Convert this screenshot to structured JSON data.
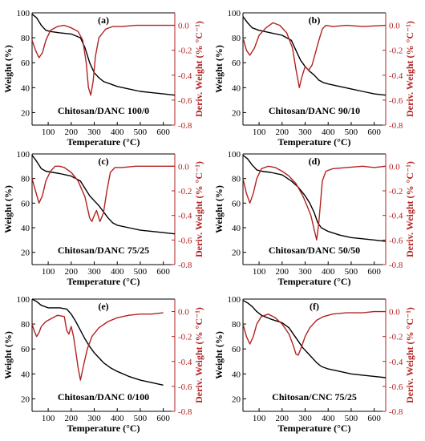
{
  "colors": {
    "weight": "#000000",
    "deriv": "#b22222",
    "frame": "#000000"
  },
  "chart_data": [
    {
      "type": "line",
      "letter": "(a)",
      "title": "Chitosan/DANC 100/0",
      "xlabel": "Temperature (°C)",
      "ylabel_left": "Weight (%)",
      "ylabel_right": "Deriv. Weight (% °C⁻¹)",
      "xlim": [
        30,
        650
      ],
      "ylim_left": [
        10,
        100
      ],
      "ylim_right": [
        -0.8,
        0.1
      ],
      "xticks": [
        "100",
        "200",
        "300",
        "400",
        "500",
        "600"
      ],
      "yticks_left": [
        "20",
        "40",
        "60",
        "80",
        "100"
      ],
      "yticks_right": [
        "0.0",
        "-0.2",
        "-0.4",
        "-0.6",
        "-0.8"
      ],
      "series": [
        {
          "axis": "left",
          "color": "#000000",
          "x": [
            30,
            50,
            70,
            90,
            110,
            150,
            200,
            240,
            260,
            280,
            300,
            320,
            340,
            370,
            400,
            450,
            500,
            550,
            600,
            650
          ],
          "y": [
            99,
            96,
            90,
            86,
            85,
            84,
            83,
            80,
            72,
            60,
            52,
            48,
            45,
            43,
            41,
            39,
            37,
            36,
            35,
            34
          ]
        },
        {
          "axis": "right",
          "color": "#b22222",
          "x": [
            30,
            45,
            60,
            75,
            90,
            110,
            140,
            170,
            200,
            230,
            250,
            265,
            275,
            285,
            295,
            305,
            320,
            350,
            380,
            420,
            480,
            550,
            600,
            650
          ],
          "y": [
            -0.12,
            -0.2,
            -0.26,
            -0.22,
            -0.12,
            -0.04,
            -0.01,
            0.0,
            -0.02,
            -0.05,
            -0.12,
            -0.3,
            -0.5,
            -0.56,
            -0.45,
            -0.25,
            -0.1,
            -0.03,
            -0.01,
            -0.01,
            0.0,
            0.0,
            0.0,
            0.0
          ]
        }
      ]
    },
    {
      "type": "line",
      "letter": "(b)",
      "title": "Chitosan/DANC 90/10",
      "xlabel": "Temperature (°C)",
      "ylabel_left": "Weight (%)",
      "ylabel_right": "Deriv. Weight (% °C⁻¹)",
      "xlim": [
        30,
        650
      ],
      "ylim_left": [
        10,
        100
      ],
      "ylim_right": [
        -0.8,
        0.1
      ],
      "xticks": [
        "100",
        "200",
        "300",
        "400",
        "500",
        "600"
      ],
      "yticks_left": [
        "20",
        "40",
        "60",
        "80",
        "100"
      ],
      "yticks_right": [
        "0.0",
        "-0.2",
        "-0.4",
        "-0.6",
        "-0.8"
      ],
      "series": [
        {
          "axis": "left",
          "color": "#000000",
          "x": [
            30,
            50,
            70,
            100,
            150,
            200,
            240,
            260,
            280,
            300,
            320,
            340,
            360,
            380,
            400,
            450,
            500,
            550,
            600,
            650
          ],
          "y": [
            97,
            92,
            88,
            86,
            84,
            82,
            78,
            70,
            62,
            57,
            53,
            50,
            46,
            44,
            43,
            41,
            39,
            37,
            35,
            34
          ]
        },
        {
          "axis": "right",
          "color": "#b22222",
          "x": [
            30,
            45,
            60,
            80,
            100,
            130,
            160,
            190,
            220,
            245,
            260,
            275,
            285,
            300,
            315,
            330,
            345,
            360,
            375,
            390,
            420,
            480,
            550,
            650
          ],
          "y": [
            -0.1,
            -0.2,
            -0.24,
            -0.18,
            -0.08,
            -0.02,
            0.02,
            0.0,
            -0.06,
            -0.18,
            -0.35,
            -0.5,
            -0.42,
            -0.33,
            -0.36,
            -0.32,
            -0.22,
            -0.12,
            -0.03,
            0.0,
            -0.01,
            0.0,
            -0.01,
            0.0
          ]
        }
      ]
    },
    {
      "type": "line",
      "letter": "(c)",
      "title": "Chitosan/DANC 75/25",
      "xlabel": "Temperature (°C)",
      "ylabel_left": "Weight (%)",
      "ylabel_right": "Deriv. Weight (% °C⁻¹)",
      "xlim": [
        30,
        650
      ],
      "ylim_left": [
        10,
        100
      ],
      "ylim_right": [
        -0.8,
        0.1
      ],
      "xticks": [
        "100",
        "200",
        "300",
        "400",
        "500",
        "600"
      ],
      "yticks_left": [
        "20",
        "40",
        "60",
        "80",
        "100"
      ],
      "yticks_right": [
        "0.0",
        "-0.2",
        "-0.4",
        "-0.6",
        "-0.8"
      ],
      "series": [
        {
          "axis": "left",
          "color": "#000000",
          "x": [
            30,
            50,
            70,
            90,
            120,
            150,
            200,
            240,
            260,
            280,
            300,
            320,
            340,
            360,
            380,
            400,
            450,
            500,
            550,
            600,
            650
          ],
          "y": [
            99,
            94,
            88,
            86,
            85,
            84,
            82,
            78,
            72,
            66,
            62,
            58,
            53,
            48,
            44,
            42,
            40,
            38,
            37,
            36,
            35
          ]
        },
        {
          "axis": "right",
          "color": "#b22222",
          "x": [
            30,
            45,
            60,
            75,
            90,
            110,
            130,
            150,
            170,
            200,
            230,
            260,
            280,
            290,
            300,
            310,
            325,
            340,
            355,
            370,
            390,
            420,
            480,
            550,
            650
          ],
          "y": [
            -0.1,
            -0.2,
            -0.3,
            -0.24,
            -0.12,
            -0.04,
            0.0,
            0.0,
            -0.01,
            -0.05,
            -0.12,
            -0.25,
            -0.42,
            -0.45,
            -0.4,
            -0.36,
            -0.45,
            -0.38,
            -0.2,
            -0.05,
            -0.01,
            -0.01,
            0.0,
            0.0,
            0.0
          ]
        }
      ]
    },
    {
      "type": "line",
      "letter": "(d)",
      "title": "Chitosan/DANC 50/50",
      "xlabel": "Temperature (°C)",
      "ylabel_left": "Weight (%)",
      "ylabel_right": "Deriv. Weight (% °C⁻¹)",
      "xlim": [
        30,
        650
      ],
      "ylim_left": [
        10,
        100
      ],
      "ylim_right": [
        -0.8,
        0.1
      ],
      "xticks": [
        "100",
        "200",
        "300",
        "400",
        "500",
        "600"
      ],
      "yticks_left": [
        "20",
        "40",
        "60",
        "80",
        "100"
      ],
      "yticks_right": [
        "0.0",
        "-0.2",
        "-0.4",
        "-0.6",
        "-0.8"
      ],
      "series": [
        {
          "axis": "left",
          "color": "#000000",
          "x": [
            30,
            50,
            70,
            90,
            110,
            150,
            200,
            240,
            270,
            300,
            320,
            340,
            355,
            370,
            400,
            450,
            500,
            550,
            600,
            650
          ],
          "y": [
            99,
            96,
            91,
            87,
            86,
            85,
            83,
            78,
            73,
            66,
            60,
            52,
            44,
            40,
            37,
            34,
            32,
            31,
            30,
            29
          ]
        },
        {
          "axis": "right",
          "color": "#b22222",
          "x": [
            30,
            45,
            60,
            75,
            90,
            110,
            140,
            170,
            200,
            230,
            260,
            290,
            310,
            325,
            340,
            350,
            360,
            375,
            390,
            420,
            480,
            550,
            600,
            650
          ],
          "y": [
            -0.1,
            -0.22,
            -0.3,
            -0.22,
            -0.1,
            -0.02,
            0.0,
            -0.01,
            -0.04,
            -0.08,
            -0.14,
            -0.24,
            -0.33,
            -0.4,
            -0.52,
            -0.6,
            -0.45,
            -0.12,
            -0.04,
            -0.02,
            -0.01,
            0.0,
            -0.01,
            0.0
          ]
        }
      ]
    },
    {
      "type": "line",
      "letter": "(e)",
      "title": "Chitosan/DANC 0/100",
      "xlabel": "Temperature (°C)",
      "ylabel_left": "Weight (%)",
      "ylabel_right": "Deriv. Weight (% °C⁻¹)",
      "xlim": [
        30,
        650
      ],
      "ylim_left": [
        10,
        100
      ],
      "ylim_right": [
        -0.8,
        0.1
      ],
      "xticks": [
        "100",
        "200",
        "300",
        "400",
        "500",
        "600"
      ],
      "yticks_left": [
        "20",
        "40",
        "60",
        "80",
        "100"
      ],
      "yticks_right": [
        "0.0",
        "-0.2",
        "-0.4",
        "-0.6",
        "-0.8"
      ],
      "series": [
        {
          "axis": "left",
          "color": "#000000",
          "x": [
            30,
            50,
            70,
            100,
            150,
            180,
            200,
            220,
            240,
            260,
            280,
            300,
            320,
            340,
            370,
            400,
            450,
            500,
            550,
            600
          ],
          "y": [
            100,
            98,
            95,
            93,
            93,
            92,
            88,
            82,
            75,
            68,
            62,
            57,
            53,
            49,
            45,
            42,
            38,
            35,
            33,
            31
          ]
        },
        {
          "axis": "right",
          "color": "#b22222",
          "x": [
            30,
            40,
            50,
            60,
            70,
            90,
            110,
            140,
            170,
            180,
            190,
            200,
            210,
            220,
            230,
            240,
            255,
            270,
            290,
            320,
            360,
            400,
            450,
            500,
            550,
            600
          ],
          "y": [
            -0.1,
            -0.16,
            -0.2,
            -0.17,
            -0.12,
            -0.08,
            -0.06,
            -0.03,
            -0.04,
            -0.15,
            -0.18,
            -0.12,
            -0.2,
            -0.32,
            -0.45,
            -0.55,
            -0.42,
            -0.3,
            -0.2,
            -0.13,
            -0.08,
            -0.05,
            -0.03,
            -0.02,
            -0.02,
            -0.01
          ]
        }
      ]
    },
    {
      "type": "line",
      "letter": "(f)",
      "title": "Chitosan/CNC 75/25",
      "xlabel": "Temperature (°C)",
      "ylabel_left": "Weight (%)",
      "ylabel_right": "Deriv. Weight (% °C⁻¹)",
      "xlim": [
        30,
        650
      ],
      "ylim_left": [
        10,
        100
      ],
      "ylim_right": [
        -0.8,
        0.1
      ],
      "xticks": [
        "100",
        "200",
        "300",
        "400",
        "500",
        "600"
      ],
      "yticks_left": [
        "20",
        "40",
        "60",
        "80",
        "100"
      ],
      "yticks_right": [
        "0.0",
        "-0.2",
        "-0.4",
        "-0.6",
        "-0.8"
      ],
      "series": [
        {
          "axis": "left",
          "color": "#000000",
          "x": [
            30,
            50,
            70,
            90,
            110,
            150,
            200,
            230,
            260,
            290,
            320,
            350,
            370,
            400,
            450,
            500,
            550,
            600,
            650
          ],
          "y": [
            99,
            97,
            94,
            90,
            87,
            84,
            81,
            77,
            69,
            61,
            55,
            49,
            46,
            44,
            42,
            40,
            39,
            38,
            37
          ]
        },
        {
          "axis": "right",
          "color": "#b22222",
          "x": [
            30,
            45,
            60,
            75,
            90,
            110,
            140,
            170,
            200,
            230,
            250,
            260,
            270,
            285,
            300,
            320,
            350,
            380,
            420,
            480,
            550,
            600,
            650
          ],
          "y": [
            -0.1,
            -0.2,
            -0.26,
            -0.2,
            -0.1,
            -0.04,
            -0.02,
            -0.05,
            -0.1,
            -0.18,
            -0.28,
            -0.34,
            -0.35,
            -0.28,
            -0.2,
            -0.13,
            -0.07,
            -0.04,
            -0.02,
            -0.01,
            -0.01,
            0.0,
            0.0
          ]
        }
      ]
    }
  ]
}
